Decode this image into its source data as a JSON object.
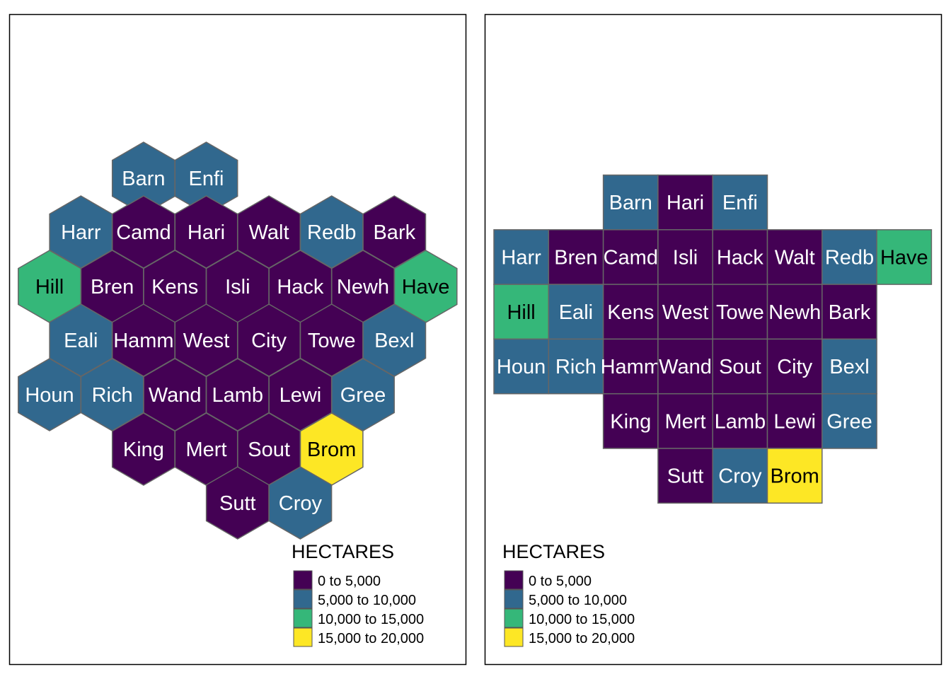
{
  "legend": {
    "title": "HECTARES",
    "classes": [
      {
        "label": "0 to 5,000",
        "color": "#440154"
      },
      {
        "label": "5,000 to 10,000",
        "color": "#31688E"
      },
      {
        "label": "10,000 to 15,000",
        "color": "#35B779"
      },
      {
        "label": "15,000 to 20,000",
        "color": "#FDE725"
      }
    ]
  },
  "hex_map": {
    "cells": [
      {
        "name": "Barn",
        "cls": 1
      },
      {
        "name": "Enfi",
        "cls": 1
      },
      {
        "name": "Harr",
        "cls": 1
      },
      {
        "name": "Camd",
        "cls": 0
      },
      {
        "name": "Hari",
        "cls": 0
      },
      {
        "name": "Walt",
        "cls": 0
      },
      {
        "name": "Redb",
        "cls": 1
      },
      {
        "name": "Bark",
        "cls": 0
      },
      {
        "name": "Hill",
        "cls": 2
      },
      {
        "name": "Bren",
        "cls": 0
      },
      {
        "name": "Kens",
        "cls": 0
      },
      {
        "name": "Isli",
        "cls": 0
      },
      {
        "name": "Hack",
        "cls": 0
      },
      {
        "name": "Newh",
        "cls": 0
      },
      {
        "name": "Have",
        "cls": 2
      },
      {
        "name": "Eali",
        "cls": 1
      },
      {
        "name": "Hamm",
        "cls": 0
      },
      {
        "name": "West",
        "cls": 0
      },
      {
        "name": "City",
        "cls": 0
      },
      {
        "name": "Towe",
        "cls": 0
      },
      {
        "name": "Bexl",
        "cls": 1
      },
      {
        "name": "Houn",
        "cls": 1
      },
      {
        "name": "Rich",
        "cls": 1
      },
      {
        "name": "Wand",
        "cls": 0
      },
      {
        "name": "Lamb",
        "cls": 0
      },
      {
        "name": "Lewi",
        "cls": 0
      },
      {
        "name": "Gree",
        "cls": 1
      },
      {
        "name": "King",
        "cls": 0
      },
      {
        "name": "Mert",
        "cls": 0
      },
      {
        "name": "Sout",
        "cls": 0
      },
      {
        "name": "Brom",
        "cls": 3
      },
      {
        "name": "Sutt",
        "cls": 0
      },
      {
        "name": "Croy",
        "cls": 1
      }
    ]
  },
  "grid_map": {
    "cells": [
      {
        "name": "Barn",
        "cls": 1
      },
      {
        "name": "Hari",
        "cls": 0
      },
      {
        "name": "Enfi",
        "cls": 1
      },
      {
        "name": "Harr",
        "cls": 1
      },
      {
        "name": "Bren",
        "cls": 0
      },
      {
        "name": "Camd",
        "cls": 0
      },
      {
        "name": "Isli",
        "cls": 0
      },
      {
        "name": "Hack",
        "cls": 0
      },
      {
        "name": "Walt",
        "cls": 0
      },
      {
        "name": "Redb",
        "cls": 1
      },
      {
        "name": "Have",
        "cls": 2
      },
      {
        "name": "Hill",
        "cls": 2
      },
      {
        "name": "Eali",
        "cls": 1
      },
      {
        "name": "Kens",
        "cls": 0
      },
      {
        "name": "West",
        "cls": 0
      },
      {
        "name": "Towe",
        "cls": 0
      },
      {
        "name": "Newh",
        "cls": 0
      },
      {
        "name": "Bark",
        "cls": 0
      },
      {
        "name": "Houn",
        "cls": 1
      },
      {
        "name": "Rich",
        "cls": 1
      },
      {
        "name": "Hamm",
        "cls": 0
      },
      {
        "name": "Wand",
        "cls": 0
      },
      {
        "name": "Sout",
        "cls": 0
      },
      {
        "name": "City",
        "cls": 0
      },
      {
        "name": "Bexl",
        "cls": 1
      },
      {
        "name": "King",
        "cls": 0
      },
      {
        "name": "Mert",
        "cls": 0
      },
      {
        "name": "Lamb",
        "cls": 0
      },
      {
        "name": "Lewi",
        "cls": 0
      },
      {
        "name": "Gree",
        "cls": 1
      },
      {
        "name": "Sutt",
        "cls": 0
      },
      {
        "name": "Croy",
        "cls": 1
      },
      {
        "name": "Brom",
        "cls": 3
      }
    ]
  }
}
